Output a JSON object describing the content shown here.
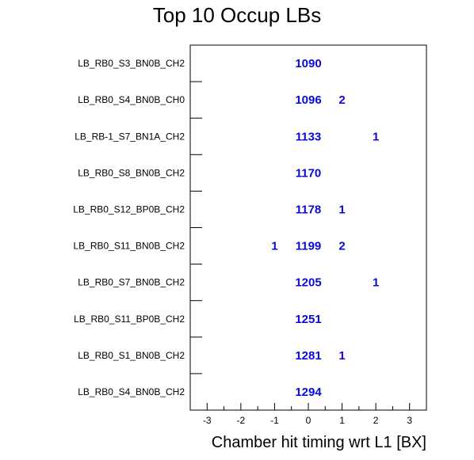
{
  "chart_data": {
    "type": "heatmap",
    "title": "Top 10 Occup LBs",
    "xlabel": "Chamber hit timing wrt L1 [BX]",
    "ylabel": "",
    "xlim": [
      -3.5,
      3.5
    ],
    "xticks": [
      -3,
      -2,
      -1,
      0,
      1,
      2,
      3
    ],
    "rows": [
      "LB_RB0_S3_BN0B_CH2",
      "LB_RB0_S4_BN0B_CH0",
      "LB_RB-1_S7_BN1A_CH2",
      "LB_RB0_S8_BN0B_CH2",
      "LB_RB0_S12_BP0B_CH2",
      "LB_RB0_S11_BN0B_CH2",
      "LB_RB0_S7_BN0B_CH2",
      "LB_RB0_S11_BP0B_CH2",
      "LB_RB0_S1_BN0B_CH2",
      "LB_RB0_S4_BN0B_CH2"
    ],
    "cells": [
      {
        "row": 0,
        "x": 0,
        "value": 1090
      },
      {
        "row": 1,
        "x": 0,
        "value": 1096
      },
      {
        "row": 1,
        "x": 1,
        "value": 2
      },
      {
        "row": 2,
        "x": 0,
        "value": 1133
      },
      {
        "row": 2,
        "x": 2,
        "value": 1
      },
      {
        "row": 3,
        "x": 0,
        "value": 1170
      },
      {
        "row": 4,
        "x": 0,
        "value": 1178
      },
      {
        "row": 4,
        "x": 1,
        "value": 1
      },
      {
        "row": 5,
        "x": -1,
        "value": 1
      },
      {
        "row": 5,
        "x": 0,
        "value": 1199
      },
      {
        "row": 5,
        "x": 1,
        "value": 2
      },
      {
        "row": 6,
        "x": 0,
        "value": 1205
      },
      {
        "row": 6,
        "x": 2,
        "value": 1
      },
      {
        "row": 7,
        "x": 0,
        "value": 1251
      },
      {
        "row": 8,
        "x": 0,
        "value": 1281
      },
      {
        "row": 8,
        "x": 1,
        "value": 1
      },
      {
        "row": 9,
        "x": 0,
        "value": 1294
      }
    ],
    "text_color": "#0a0ad6"
  }
}
